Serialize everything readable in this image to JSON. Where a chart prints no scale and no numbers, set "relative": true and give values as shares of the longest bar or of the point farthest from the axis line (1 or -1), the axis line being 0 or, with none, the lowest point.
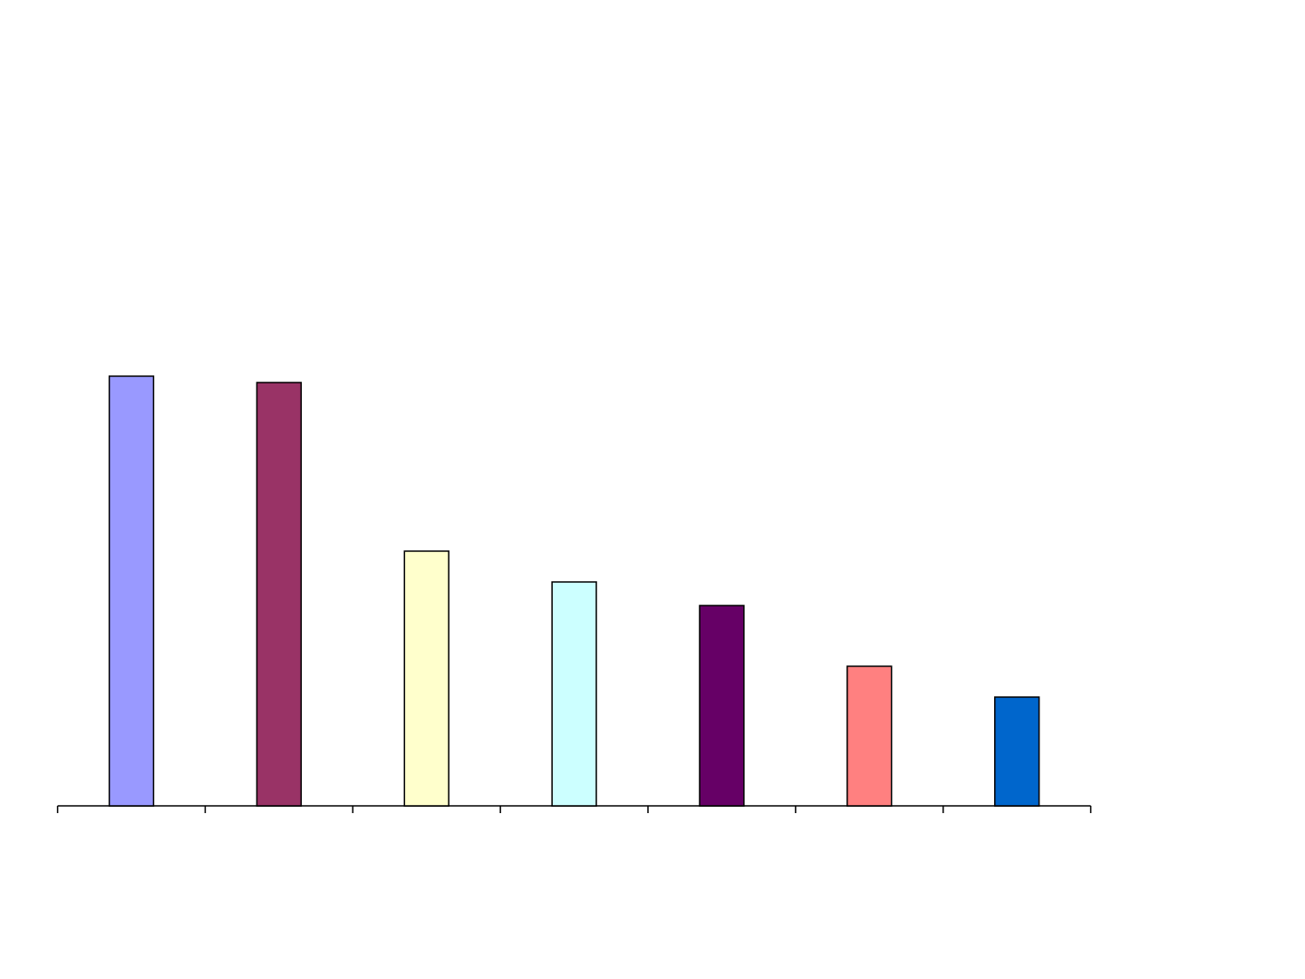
{
  "chart_data": {
    "type": "bar",
    "relative": true,
    "categories": [
      null,
      null,
      null,
      null,
      null,
      null,
      null
    ],
    "values": [
      1,
      0.985,
      0.593,
      0.521,
      0.466,
      0.325,
      0.253
    ],
    "colors": [
      "#9999ff",
      "#993366",
      "#ffffcc",
      "#ccffff",
      "#660066",
      "#ff8080",
      "#0066cc"
    ]
  }
}
